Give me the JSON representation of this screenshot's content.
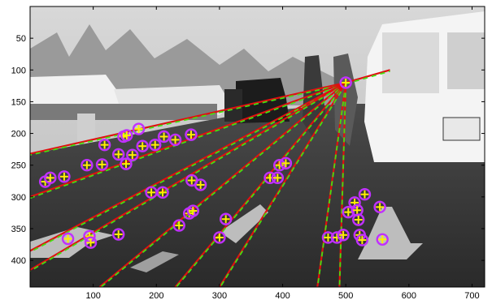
{
  "chart_data": {
    "type": "scatter",
    "title": "",
    "xlabel": "",
    "ylabel": "",
    "xlim": [
      0,
      720
    ],
    "ylim": [
      442,
      0
    ],
    "y_reversed": true,
    "grid": false,
    "xticks": [
      100,
      200,
      300,
      400,
      500,
      600,
      700
    ],
    "yticks": [
      50,
      100,
      150,
      200,
      250,
      300,
      350,
      400
    ],
    "background": "grayscale street photograph (vans, pedestrians, harbor boats, road arrows)",
    "vanishing_point": [
      500,
      120
    ],
    "lines_from_vanishing_point_to": [
      [
        0,
        232
      ],
      [
        0,
        300
      ],
      [
        0,
        385
      ],
      [
        0,
        415
      ],
      [
        110,
        442
      ],
      [
        230,
        442
      ],
      [
        300,
        442
      ],
      [
        455,
        442
      ],
      [
        490,
        442
      ],
      [
        570,
        100
      ]
    ],
    "points": [
      [
        24,
        276
      ],
      [
        32,
        270
      ],
      [
        54,
        268
      ],
      [
        90,
        250
      ],
      [
        114,
        249
      ],
      [
        118,
        218
      ],
      [
        140,
        233
      ],
      [
        148,
        205
      ],
      [
        153,
        203
      ],
      [
        152,
        248
      ],
      [
        162,
        234
      ],
      [
        172,
        193
      ],
      [
        178,
        220
      ],
      [
        192,
        293
      ],
      [
        210,
        293
      ],
      [
        198,
        218
      ],
      [
        212,
        205
      ],
      [
        230,
        210
      ],
      [
        255,
        202
      ],
      [
        236,
        345
      ],
      [
        252,
        326
      ],
      [
        258,
        322
      ],
      [
        256,
        274
      ],
      [
        270,
        281
      ],
      [
        60,
        366
      ],
      [
        94,
        362
      ],
      [
        96,
        372
      ],
      [
        140,
        359
      ],
      [
        300,
        364
      ],
      [
        310,
        335
      ],
      [
        380,
        270
      ],
      [
        392,
        270
      ],
      [
        395,
        250
      ],
      [
        405,
        247
      ],
      [
        500,
        120
      ],
      [
        472,
        364
      ],
      [
        486,
        364
      ],
      [
        496,
        360
      ],
      [
        504,
        324
      ],
      [
        514,
        309
      ],
      [
        518,
        321
      ],
      [
        520,
        336
      ],
      [
        522,
        360
      ],
      [
        526,
        368
      ],
      [
        530,
        296
      ],
      [
        554,
        316
      ],
      [
        558,
        367
      ]
    ],
    "colors": {
      "line_red": "#e01010",
      "line_green": "#44e010",
      "marker_circle": "#c030ff",
      "marker_plus": "#ffee00"
    }
  }
}
